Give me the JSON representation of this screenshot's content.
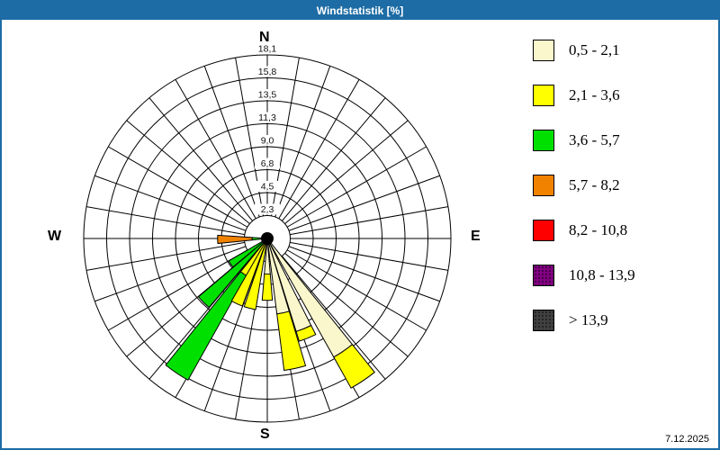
{
  "window": {
    "title": "Windstatistik [%]",
    "titlebar_color": "#1d6ca5",
    "border_color": "#1d6ca5",
    "date": "7.12.2025"
  },
  "compass": {
    "north": "N",
    "east": "E",
    "south": "S",
    "west": "W"
  },
  "legend": {
    "items": [
      {
        "label": "0,5 - 2,1",
        "color": "#fbf7cd",
        "dotted": false,
        "key": "cream"
      },
      {
        "label": "2,1 - 3,6",
        "color": "#ffff00",
        "dotted": false,
        "key": "yellow"
      },
      {
        "label": "3,6 - 5,7",
        "color": "#00e000",
        "dotted": false,
        "key": "green"
      },
      {
        "label": "5,7 - 8,2",
        "color": "#f08200",
        "dotted": false,
        "key": "orange"
      },
      {
        "label": "8,2 - 10,8",
        "color": "#ff0000",
        "dotted": false,
        "key": "red"
      },
      {
        "label": "10,8 - 13,9",
        "color": "#800080",
        "dotted": true,
        "key": "purple"
      },
      {
        "label": "> 13,9",
        "color": "#404040",
        "dotted": true,
        "key": "gray"
      }
    ]
  },
  "chart_data": {
    "type": "windrose",
    "title": "Windstatistik [%]",
    "units": "%",
    "max_value": 18.1,
    "ring_labels": [
      "2,3",
      "4,5",
      "6,8",
      "9,0",
      "11,3",
      "13,5",
      "15,8",
      "18,1"
    ],
    "ring_values": [
      2.3,
      4.5,
      6.8,
      9.0,
      11.3,
      13.5,
      15.8,
      18.1
    ],
    "spoke_step_deg": 10,
    "bar_width_deg": 9.5,
    "grid_color": "#000000",
    "speed_class_colors": {
      "cream": "#fbf7cd",
      "yellow": "#ffff00",
      "green": "#00e000",
      "orange": "#f08200",
      "red": "#ff0000",
      "purple": "#800080",
      "gray": "#404040"
    },
    "speed_class_labels": {
      "cream": "0,5 - 2,1",
      "yellow": "2,1 - 3,6",
      "green": "3,6 - 5,7",
      "orange": "5,7 - 8,2",
      "red": "8,2 - 10,8",
      "purple": "10,8 - 13,9",
      "gray": "> 13,9"
    },
    "bars": [
      {
        "direction_deg": 269,
        "segments": [
          {
            "class": "green",
            "from": 0.0,
            "to": 1.5
          },
          {
            "class": "orange",
            "from": 1.5,
            "to": 4.9
          }
        ]
      },
      {
        "direction_deg": 235,
        "segments": [
          {
            "class": "green",
            "from": 0.0,
            "to": 4.4
          }
        ]
      },
      {
        "direction_deg": 225,
        "segments": [
          {
            "class": "green",
            "from": 0.0,
            "to": 8.9
          }
        ]
      },
      {
        "direction_deg": 214,
        "segments": [
          {
            "class": "yellow",
            "from": 0.0,
            "to": 4.2
          },
          {
            "class": "green",
            "from": 4.2,
            "to": 16.0
          }
        ]
      },
      {
        "direction_deg": 205,
        "segments": [
          {
            "class": "yellow",
            "from": 0.0,
            "to": 7.1
          }
        ]
      },
      {
        "direction_deg": 194,
        "segments": [
          {
            "class": "yellow",
            "from": 0.0,
            "to": 7.1
          }
        ]
      },
      {
        "direction_deg": 180,
        "segments": [
          {
            "class": "cream",
            "from": 0.0,
            "to": 3.5
          },
          {
            "class": "yellow",
            "from": 3.5,
            "to": 6.1
          }
        ]
      },
      {
        "direction_deg": 168,
        "segments": [
          {
            "class": "cream",
            "from": 0.0,
            "to": 7.5
          },
          {
            "class": "yellow",
            "from": 7.5,
            "to": 13.1
          }
        ]
      },
      {
        "direction_deg": 158,
        "segments": [
          {
            "class": "cream",
            "from": 0.0,
            "to": 9.6
          },
          {
            "class": "yellow",
            "from": 9.6,
            "to": 10.6
          }
        ]
      },
      {
        "direction_deg": 146,
        "segments": [
          {
            "class": "cream",
            "from": 0.0,
            "to": 13.4
          },
          {
            "class": "yellow",
            "from": 13.4,
            "to": 16.9
          }
        ]
      }
    ]
  }
}
